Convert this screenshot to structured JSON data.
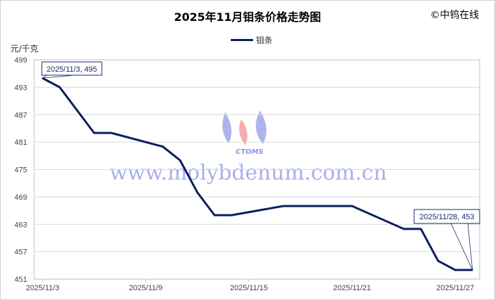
{
  "chart_data": {
    "type": "line",
    "title": "2025年11月钼条价格走势图",
    "copyright": "©中钨在线",
    "ylabel": "元/千克",
    "ylim": [
      451,
      499
    ],
    "yticks": [
      451,
      457,
      463,
      469,
      475,
      481,
      487,
      493,
      499
    ],
    "xlim": [
      "2025/11/3",
      "2025/11/28"
    ],
    "xticks": [
      "2025/11/3",
      "2025/11/9",
      "2025/11/15",
      "2025/11/21",
      "2025/11/27"
    ],
    "grid": true,
    "legend_position": "top",
    "series": [
      {
        "name": "钼条",
        "color": "#0a1f5c",
        "x": [
          "2025/11/3",
          "2025/11/4",
          "2025/11/5",
          "2025/11/6",
          "2025/11/7",
          "2025/11/10",
          "2025/11/11",
          "2025/11/12",
          "2025/11/13",
          "2025/11/14",
          "2025/11/17",
          "2025/11/18",
          "2025/11/19",
          "2025/11/20",
          "2025/11/21",
          "2025/11/24",
          "2025/11/25",
          "2025/11/26",
          "2025/11/27",
          "2025/11/28"
        ],
        "values": [
          495,
          493,
          488,
          483,
          483,
          480,
          477,
          470,
          465,
          465,
          467,
          467,
          467,
          467,
          467,
          462,
          462,
          455,
          453,
          453
        ]
      }
    ],
    "annotations": [
      "2025/11/3, 495",
      "2025/11/28, 453"
    ],
    "watermark": {
      "text": "www.molybdenum.com.cn",
      "logo_text": "CTOMS"
    }
  }
}
